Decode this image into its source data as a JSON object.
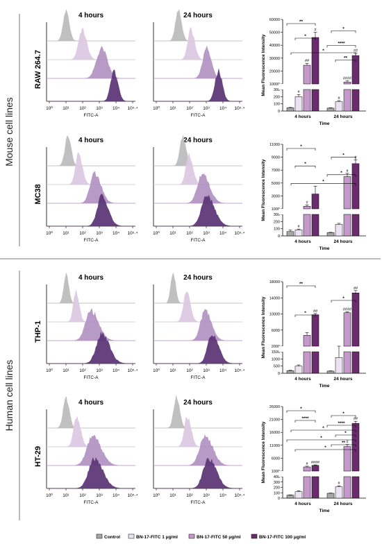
{
  "groups": [
    "Mouse cell lines",
    "Human cell lines"
  ],
  "flow_panel_titles": [
    "4 hours",
    "24 hours"
  ],
  "flow_x_ticks": [
    "10⁰",
    "10¹",
    "10²",
    "10³",
    "10⁴",
    "10⁵·⁴"
  ],
  "flow_xlabel": "FITC-A",
  "legend": {
    "entries": [
      "Control",
      "BN-17-FITC 1 μg/ml",
      "BN-17-FITC 50 μg/ml",
      "BN-17-FITC 100 μg/ml"
    ],
    "colors": [
      "#a6a6a6",
      "#ede2f1",
      "#c498c9",
      "#6b2c6e"
    ]
  },
  "flow_colors": [
    "#bdbdbd",
    "#ddc9e3",
    "#b495c4",
    "#5e3879"
  ],
  "chart_data": [
    {
      "type": "bar",
      "cell_line": "RAW 264.7",
      "categories": [
        "4 hours",
        "24 hours"
      ],
      "xlabel": "Time",
      "ylabel": "Mean Fluorescence Intensity",
      "axis_break": true,
      "lower_ticks": [
        0,
        100,
        200,
        300
      ],
      "upper_ticks": [
        10000,
        20000,
        30000,
        40000,
        50000,
        60000
      ],
      "series": [
        {
          "name": "Control",
          "values": [
            45,
            40
          ],
          "errors": [
            5,
            5
          ]
        },
        {
          "name": "BN-17-FITC 1 μg/ml",
          "values": [
            200,
            130
          ],
          "errors": [
            30,
            15
          ]
        },
        {
          "name": "BN-17-FITC 50 μg/ml",
          "values": [
            24500,
            11500
          ],
          "errors": [
            1500,
            800
          ]
        },
        {
          "name": "BN-17-FITC 100 μg/ml",
          "values": [
            46000,
            32000
          ],
          "errors": [
            4000,
            2000
          ]
        }
      ],
      "bar_labels": [
        [
          "",
          "#",
          "##",
          "#"
        ],
        [
          "",
          "#",
          "####",
          "##"
        ]
      ],
      "significance": [
        {
          "level": 0,
          "label": "**"
        },
        {
          "level": 1,
          "label": "*"
        },
        {
          "level": 2,
          "label": "*"
        },
        {
          "level": 3,
          "label": "****"
        },
        {
          "level": 4,
          "label": "*"
        },
        {
          "level": 5,
          "label": "**"
        }
      ]
    },
    {
      "type": "bar",
      "cell_line": "MC38",
      "categories": [
        "4 hours",
        "24 hours"
      ],
      "xlabel": "Time",
      "ylabel": "Mean Fluorescence Intensity",
      "axis_break": true,
      "lower_ticks": [
        0,
        100,
        200,
        300
      ],
      "upper_ticks": [
        1000,
        3000,
        5000,
        7000,
        9000,
        11000
      ],
      "series": [
        {
          "name": "Control",
          "values": [
            60,
            45
          ],
          "errors": [
            20,
            5
          ]
        },
        {
          "name": "BN-17-FITC 1 μg/ml",
          "values": [
            85,
            160
          ],
          "errors": [
            10,
            15
          ]
        },
        {
          "name": "BN-17-FITC 50 μg/ml",
          "values": [
            1400,
            6000
          ],
          "errors": [
            200,
            500
          ]
        },
        {
          "name": "BN-17-FITC 100 μg/ml",
          "values": [
            3300,
            8000
          ],
          "errors": [
            1200,
            600
          ]
        }
      ],
      "bar_labels": [
        [
          "",
          "#",
          "#",
          ""
        ],
        [
          "",
          "",
          "#",
          "#"
        ]
      ],
      "significance": [
        {
          "level": 0,
          "label": "*"
        },
        {
          "level": 1,
          "label": "*"
        },
        {
          "level": 2,
          "label": "*"
        },
        {
          "level": 3,
          "label": "*"
        },
        {
          "level": 4,
          "label": "*"
        }
      ]
    },
    {
      "type": "bar",
      "cell_line": "THP-1",
      "categories": [
        "4 hours",
        "24 hours"
      ],
      "xlabel": "Time",
      "ylabel": "Mean Fluorescence Intensity",
      "axis_break": true,
      "lower_ticks": [
        0,
        500,
        1000,
        1500
      ],
      "upper_ticks": [
        2000,
        6000,
        10000,
        14000,
        18000
      ],
      "series": [
        {
          "name": "Control",
          "values": [
            180,
            150
          ],
          "errors": [
            30,
            20
          ]
        },
        {
          "name": "BN-17-FITC 1 μg/ml",
          "values": [
            500,
            1100
          ],
          "errors": [
            80,
            500
          ]
        },
        {
          "name": "BN-17-FITC 50 μg/ml",
          "values": [
            4700,
            10300
          ],
          "errors": [
            700,
            200
          ]
        },
        {
          "name": "BN-17-FITC 100 μg/ml",
          "values": [
            9800,
            15200
          ],
          "errors": [
            300,
            600
          ]
        }
      ],
      "bar_labels": [
        [
          "",
          "",
          "",
          "##"
        ],
        [
          "",
          "",
          "####",
          "##"
        ]
      ],
      "significance": [
        {
          "level": 0,
          "label": "**"
        },
        {
          "level": 1,
          "label": "*"
        },
        {
          "level": 2,
          "label": "*"
        }
      ]
    },
    {
      "type": "bar",
      "cell_line": "HT-29",
      "categories": [
        "4 hours",
        "24 hours"
      ],
      "xlabel": "Time",
      "ylabel": "Mean Fluorescence Intensity",
      "axis_break": true,
      "lower_ticks": [
        0,
        100,
        200,
        300,
        400
      ],
      "upper_ticks": [
        1000,
        6000,
        11000,
        16000,
        21000,
        26000
      ],
      "series": [
        {
          "name": "Control",
          "values": [
            55,
            90
          ],
          "errors": [
            5,
            5
          ]
        },
        {
          "name": "BN-17-FITC 1 μg/ml",
          "values": [
            120,
            210
          ],
          "errors": [
            15,
            20
          ]
        },
        {
          "name": "BN-17-FITC 50 μg/ml",
          "values": [
            2600,
            10500
          ],
          "errors": [
            300,
            800
          ]
        },
        {
          "name": "BN-17-FITC 100 μg/ml",
          "values": [
            3200,
            19500
          ],
          "errors": [
            200,
            800
          ]
        }
      ],
      "bar_labels": [
        [
          "",
          "",
          "#",
          "####"
        ],
        [
          "",
          "#",
          "#",
          "##"
        ]
      ],
      "significance": [
        {
          "level": 0,
          "label": "*"
        },
        {
          "level": 1,
          "label": "*"
        },
        {
          "level": 2,
          "label": "****"
        },
        {
          "level": 3,
          "label": "****"
        },
        {
          "level": 4,
          "label": "*"
        },
        {
          "level": 5,
          "label": "*"
        },
        {
          "level": 6,
          "label": "*"
        },
        {
          "level": 7,
          "label": "**"
        },
        {
          "level": 8,
          "label": "*"
        }
      ]
    }
  ]
}
